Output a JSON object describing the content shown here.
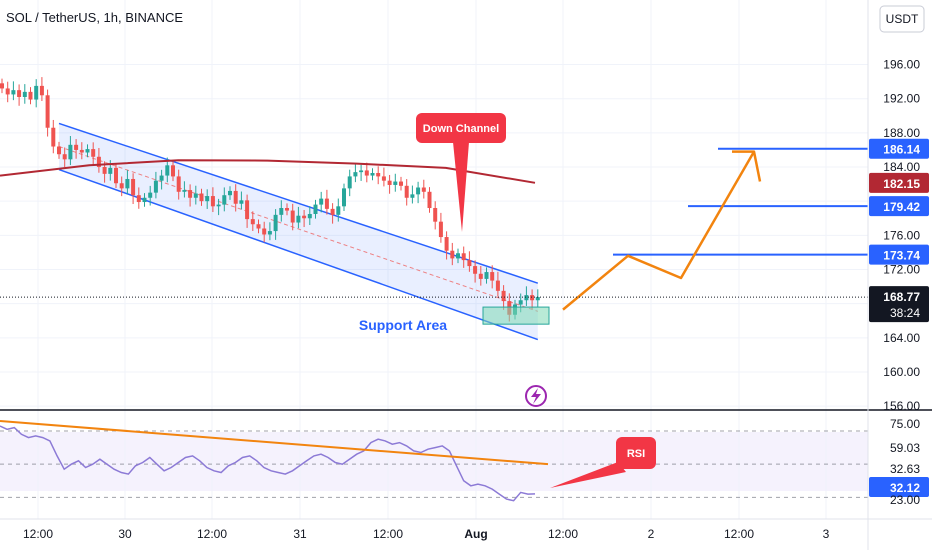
{
  "header": {
    "title": "SOL / TetherUS, 1h, BINANCE",
    "currency_button": "USDT"
  },
  "colors": {
    "bull": "#26a69a",
    "bear": "#ef5350",
    "ma": "#b22833",
    "channel": "#2962ff",
    "projection": "#f2840f",
    "callout": "#f23645",
    "support": "#7fd8b5",
    "rsi": "#8c7ad6",
    "level": "#2962ff"
  },
  "chart_data": [
    {
      "type": "candlestick",
      "symbol": "SOL / TetherUS",
      "timeframe": "1h",
      "exchange": "BINANCE",
      "ylim": [
        155.5,
        201.5
      ],
      "y_ticks": [
        "196.00",
        "192.00",
        "188.00",
        "184.00",
        "180.00",
        "176.00",
        "172.00",
        "168.00",
        "164.00",
        "160.00",
        "156.00"
      ],
      "x_ticks": [
        "12:00",
        "30",
        "12:00",
        "31",
        "12:00",
        "Aug",
        "12:00",
        "2",
        "12:00",
        "3"
      ],
      "current_price": "168.77",
      "countdown": "38:24",
      "price_tags": [
        {
          "value": "186.14",
          "color": "#2962ff"
        },
        {
          "value": "182.15",
          "color": "#b22833"
        },
        {
          "value": "179.42",
          "color": "#2962ff"
        },
        {
          "value": "173.74",
          "color": "#2962ff"
        }
      ],
      "horizontal_levels": [
        186.14,
        179.42,
        173.74
      ],
      "closes": [
        193.2,
        192.5,
        193.0,
        192.2,
        192.8,
        191.9,
        193.5,
        192.4,
        188.6,
        186.4,
        185.5,
        184.9,
        186.6,
        186.0,
        185.7,
        186.1,
        185.2,
        184.0,
        183.2,
        183.9,
        182.1,
        181.5,
        182.6,
        180.7,
        179.9,
        180.4,
        181.0,
        182.4,
        183.0,
        184.2,
        182.9,
        181.1,
        181.3,
        180.4,
        180.9,
        180.0,
        180.6,
        179.4,
        179.6,
        180.7,
        181.2,
        179.7,
        180.1,
        177.9,
        177.3,
        176.8,
        176.1,
        176.5,
        178.4,
        179.2,
        178.9,
        177.5,
        178.3,
        178.0,
        178.5,
        179.6,
        180.3,
        179.1,
        178.4,
        179.4,
        181.5,
        182.9,
        183.4,
        183.6,
        183.0,
        183.3,
        182.9,
        182.4,
        181.9,
        182.3,
        181.8,
        180.4,
        180.8,
        181.6,
        181.1,
        179.2,
        177.6,
        175.8,
        174.2,
        173.3,
        173.9,
        173.1,
        172.4,
        171.5,
        170.9,
        171.7,
        170.7,
        169.5,
        168.3,
        166.7,
        167.9,
        168.4,
        169.0,
        168.4,
        168.77
      ],
      "moving_average": [
        183.0,
        184.2,
        184.8,
        184.75,
        184.4,
        183.9,
        182.15
      ],
      "channel": {
        "upper": [
          [
            10,
            189.1
          ],
          [
            94,
            170.4
          ]
        ],
        "lower": [
          [
            10,
            183.7
          ],
          [
            94,
            163.8
          ]
        ]
      },
      "support_area": [
        165.6,
        167.6
      ],
      "projection": [
        167.3,
        173.6,
        171.0,
        185.8,
        182.3
      ],
      "annotations": {
        "callout": "Down Channel",
        "support": "Support Area"
      }
    },
    {
      "type": "line",
      "name": "RSI",
      "y_ticks": [
        "75.00",
        "59.03",
        "32.63",
        "32.12",
        "23.00"
      ],
      "values": [
        73,
        71,
        72,
        68,
        66,
        67,
        66,
        64,
        55,
        47,
        50,
        52,
        48,
        50,
        53,
        50,
        47,
        45,
        44,
        49,
        51,
        54,
        50,
        46,
        48,
        51,
        54,
        55,
        52,
        48,
        46,
        45,
        49,
        51,
        54,
        55,
        52,
        48,
        46,
        45,
        44,
        46,
        49,
        52,
        55,
        56,
        54,
        51,
        50,
        53,
        56,
        58,
        63,
        65,
        64,
        62,
        63,
        61,
        58,
        57,
        59,
        60,
        61,
        58,
        49,
        40,
        37,
        38,
        37,
        35,
        32,
        29,
        28,
        33,
        32,
        32.12
      ],
      "trendline": [
        76,
        50
      ],
      "callout": "RSI"
    }
  ]
}
